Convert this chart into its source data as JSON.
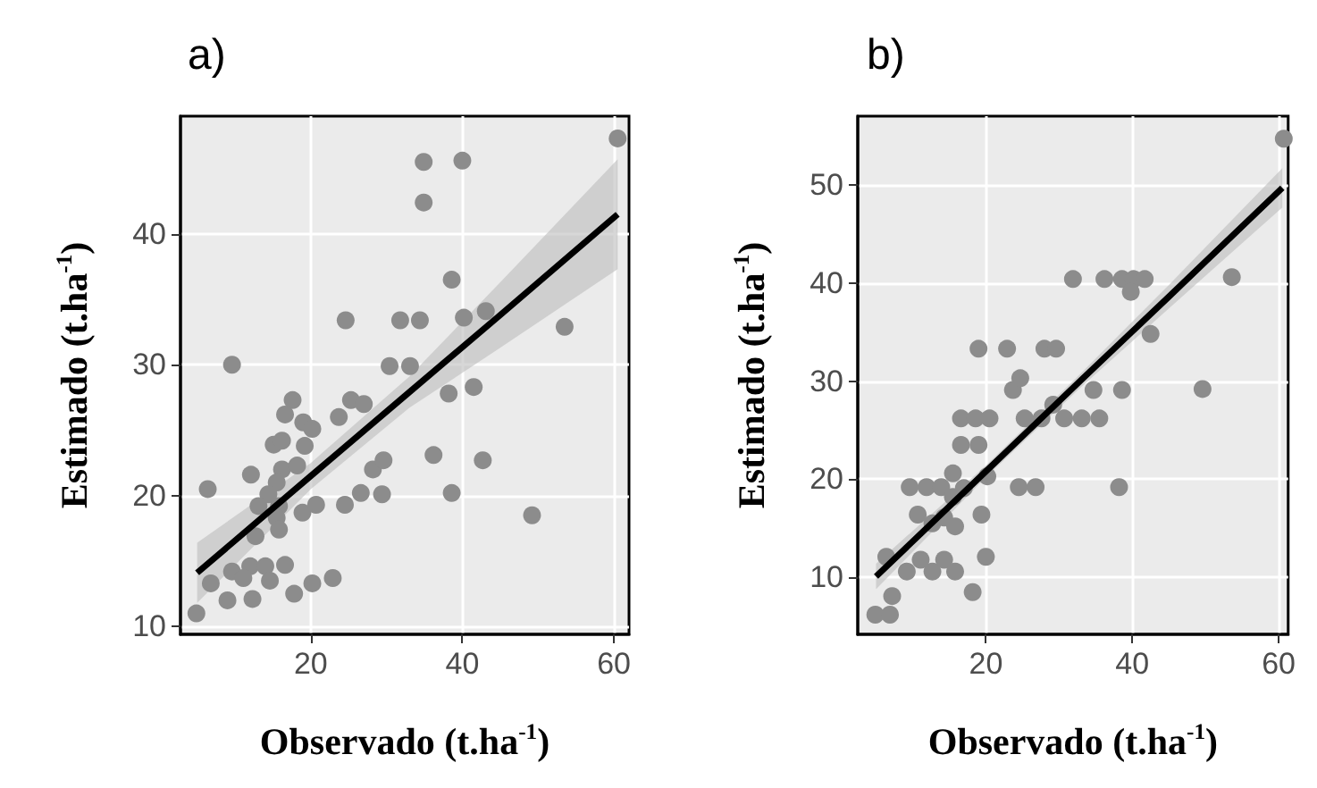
{
  "chart_data": [
    {
      "type": "scatter",
      "title": "a)",
      "xlabel": "Observado (t.ha$^{-1}$)",
      "ylabel": "Estimado (t.ha$^{-1}$)",
      "xlim": [
        2.8,
        62
      ],
      "xticks": [
        20,
        40,
        60
      ],
      "ylim": [
        9.4,
        49
      ],
      "yticks": [
        10,
        20,
        30,
        40
      ],
      "grid": true,
      "series": [
        {
          "marker": "circle",
          "color": "#8c8c8c",
          "x": [
            34.9,
            40,
            34.9,
            38.6,
            24.6,
            31.8,
            34.4,
            40.2,
            43.1,
            53.5,
            60.5,
            9.6,
            30.4,
            33.1,
            38.2,
            41.5,
            17.6,
            16.6,
            23.7,
            25.3,
            27,
            19,
            20.2,
            15.1,
            16.2,
            19.2,
            12.1,
            16.2,
            18.2,
            15.5,
            14.4,
            13.1,
            15.8,
            6.4,
            28.2,
            29.6,
            36.2,
            42.7,
            24.5,
            26.6,
            29.4,
            38.6,
            18.9,
            20.7,
            49.2,
            15.5,
            12.7,
            15.8,
            9.6,
            12,
            14,
            16.6,
            6.8,
            11.1,
            14.6,
            20.2,
            22.9,
            9,
            12.3,
            17.8,
            4.9
          ],
          "values": [
            45.5,
            45.6,
            42.4,
            36.5,
            33.4,
            33.4,
            33.4,
            33.6,
            34.1,
            32.9,
            47.3,
            30,
            29.9,
            29.9,
            27.8,
            28.3,
            27.3,
            26.2,
            26,
            27.3,
            27,
            25.6,
            25.1,
            23.9,
            24.2,
            23.8,
            21.6,
            22,
            22.3,
            21,
            20.1,
            19.2,
            19.2,
            20.5,
            22,
            22.7,
            23.1,
            22.7,
            19.3,
            20.2,
            20.1,
            20.2,
            18.7,
            19.3,
            18.5,
            18.3,
            16.9,
            17.4,
            14.2,
            14.6,
            14.6,
            14.7,
            13.3,
            13.7,
            13.5,
            13.3,
            13.7,
            12,
            12.1,
            12.5,
            11
          ]
        },
        {
          "type": "line",
          "marker": "none",
          "color": "#000000",
          "x": [
            5,
            20,
            33,
            45,
            60.5
          ],
          "values": [
            14.1,
            21.5,
            27.9,
            33.8,
            41.5
          ],
          "lower": [
            11.8,
            20.5,
            26.7,
            31.3,
            37.3
          ],
          "upper": [
            16.4,
            22.5,
            29.1,
            36.3,
            45.7
          ]
        }
      ]
    },
    {
      "type": "scatter",
      "title": "b)",
      "xlabel": "Observado (t.ha$^{-1}$)",
      "ylabel": "Estimado (t.ha$^{-1}$)",
      "xlim": [
        2.5,
        61.3
      ],
      "xticks": [
        20,
        40,
        60
      ],
      "ylim": [
        4.2,
        57
      ],
      "yticks": [
        10,
        20,
        30,
        40,
        50
      ],
      "grid": true,
      "series": [
        {
          "marker": "circle",
          "color": "#8c8c8c",
          "x": [
            4.9,
            6.9,
            7.2,
            6.4,
            9.2,
            11.1,
            12.7,
            14.3,
            15.8,
            18.2,
            20,
            10.7,
            12.7,
            14.3,
            15.8,
            19.4,
            9.6,
            11.9,
            13.9,
            15.5,
            17,
            15.5,
            20.2,
            16.6,
            19,
            16.6,
            18.6,
            20.5,
            24.5,
            26.8,
            23.7,
            24.7,
            25.3,
            27.6,
            29.2,
            30.7,
            33.1,
            35.5,
            34.7,
            38.6,
            38.2,
            19,
            22.9,
            28,
            29.6,
            31.9,
            36.2,
            38.6,
            40.2,
            41.7,
            39.8,
            42.5,
            49.6,
            53.6,
            60.7
          ],
          "values": [
            6.2,
            6.2,
            8.1,
            12.1,
            10.6,
            11.8,
            10.6,
            11.8,
            10.6,
            8.5,
            12.1,
            16.4,
            15.5,
            16.1,
            15.2,
            16.4,
            19.2,
            19.2,
            19.2,
            20.6,
            19.1,
            18.2,
            20.3,
            23.5,
            23.5,
            26.2,
            26.2,
            26.2,
            19.2,
            19.2,
            29.1,
            30.3,
            26.2,
            26.2,
            27.6,
            26.2,
            26.2,
            26.2,
            29.1,
            29.1,
            19.2,
            33.3,
            33.3,
            33.3,
            33.3,
            40.4,
            40.4,
            40.4,
            40.4,
            40.4,
            39.1,
            34.8,
            29.2,
            40.6,
            54.7
          ]
        },
        {
          "type": "line",
          "marker": "none",
          "color": "#000000",
          "x": [
            5,
            20,
            33,
            45,
            60.5
          ],
          "values": [
            10.1,
            20.8,
            30.1,
            38.6,
            49.7
          ],
          "lower": [
            8.8,
            20.2,
            29.4,
            37.4,
            47.7
          ],
          "upper": [
            11.4,
            21.4,
            30.8,
            39.8,
            51.7
          ]
        }
      ]
    }
  ]
}
